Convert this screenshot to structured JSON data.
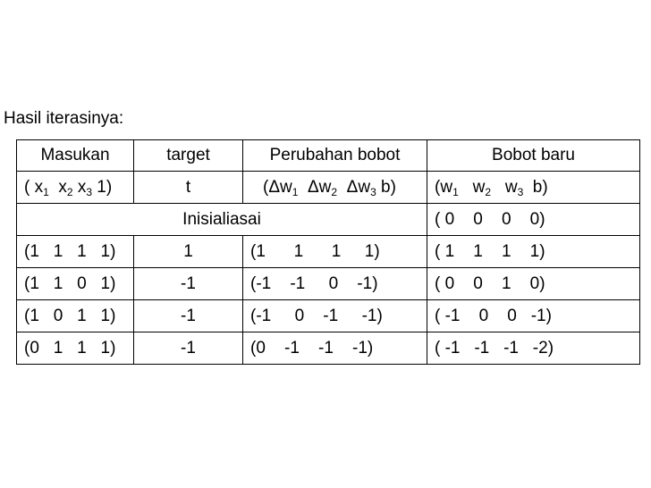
{
  "caption": "Hasil iterasinya:",
  "header": {
    "masukan": "Masukan",
    "target": "target",
    "perubahan": "Perubahan bobot",
    "bobot_baru": "Bobot baru"
  },
  "subheader": {
    "masukan": [
      "( x",
      "1",
      "  x",
      "2",
      " x",
      "3",
      " 1)"
    ],
    "target": "t",
    "perubahan": [
      "(Δw",
      "1",
      "  Δw",
      "2",
      "  Δw",
      "3",
      " b)"
    ],
    "bobot_baru": [
      "(w",
      "1",
      "   w",
      "2",
      "   w",
      "3",
      "  b)"
    ]
  },
  "init_row": {
    "label": "Inisialiasai",
    "bobot_baru": "( 0    0    0    0)"
  },
  "rows": [
    {
      "masukan": "(1   1   1   1)",
      "target": "1",
      "perubahan": "(1      1      1     1)",
      "bobot_baru": "( 1    1    1    1)"
    },
    {
      "masukan": "(1   1   0   1)",
      "target": "-1",
      "perubahan": "(-1    -1     0    -1)",
      "bobot_baru": "( 0    0    1    0)"
    },
    {
      "masukan": "(1   0   1   1)",
      "target": "-1",
      "perubahan": "(-1     0    -1     -1)",
      "bobot_baru": "( -1    0    0   -1)"
    },
    {
      "masukan": "(0   1   1   1)",
      "target": "-1",
      "perubahan": "(0    -1    -1    -1)",
      "bobot_baru": "( -1   -1   -1   -2)"
    }
  ]
}
